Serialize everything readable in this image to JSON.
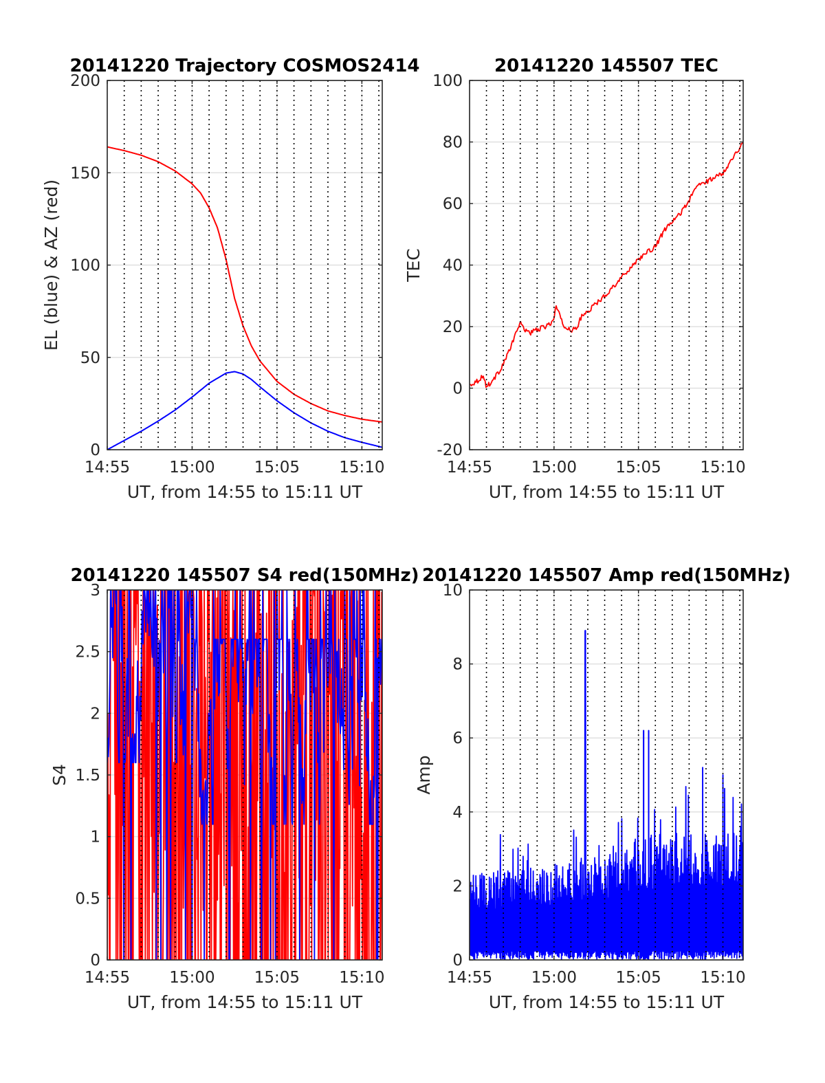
{
  "figure": {
    "background": "#ffffff",
    "colors": {
      "red": "#ff0000",
      "blue": "#0000ff",
      "axis": "#262626",
      "grid": "#e0e0e0",
      "vline": "#000000"
    }
  },
  "chart_data": [
    {
      "id": "trajectory",
      "type": "line",
      "title": "20141220 Trajectory COSMOS2414",
      "xlabel": "UT, from 14:55 to 15:11 UT",
      "ylabel": "EL (blue) & AZ (red)",
      "xlim": [
        0,
        16.2
      ],
      "ylim": [
        0,
        200
      ],
      "x_ticks": [
        0,
        5,
        10,
        15
      ],
      "x_tick_labels": [
        "14:55",
        "15:00",
        "15:05",
        "15:10"
      ],
      "y_ticks": [
        0,
        50,
        100,
        150,
        200
      ],
      "y_tick_labels": [
        "0",
        "50",
        "100",
        "150",
        "200"
      ],
      "grid": true,
      "vertical_dotted_lines_min": [
        1,
        2,
        3,
        4,
        5,
        6,
        7,
        8,
        9,
        10,
        11,
        12,
        13,
        14,
        15,
        16
      ],
      "series": [
        {
          "color": "#ff0000",
          "x": [
            0,
            1,
            2,
            3,
            4,
            5,
            5.5,
            6,
            6.5,
            7,
            7.5,
            8,
            8.5,
            9,
            10,
            11,
            12,
            13,
            14,
            15,
            16.2
          ],
          "y": [
            164,
            162,
            159.5,
            156,
            151,
            144,
            139,
            131,
            120,
            103,
            82,
            67,
            56,
            48,
            37,
            30,
            25,
            21,
            18.5,
            16.5,
            15
          ]
        },
        {
          "color": "#0000ff",
          "x": [
            0,
            1,
            2,
            3,
            4,
            5,
            6,
            7,
            7.5,
            8,
            8.5,
            9,
            10,
            11,
            12,
            13,
            14,
            15,
            16.2
          ],
          "y": [
            0,
            5,
            10,
            15.5,
            21.5,
            28.5,
            36,
            41.5,
            42.3,
            41,
            38,
            34,
            26.5,
            20,
            14.5,
            10,
            6.5,
            4,
            1.3
          ]
        }
      ]
    },
    {
      "id": "tec",
      "type": "line",
      "title": "20141220 145507 TEC",
      "xlabel": "UT, from 14:55 to 15:11 UT",
      "ylabel": "TEC",
      "xlim": [
        0,
        16.2
      ],
      "ylim": [
        -20,
        100
      ],
      "x_ticks": [
        0,
        5,
        10,
        15
      ],
      "x_tick_labels": [
        "14:55",
        "15:00",
        "15:05",
        "15:10"
      ],
      "y_ticks": [
        -20,
        0,
        20,
        40,
        60,
        80,
        100
      ],
      "y_tick_labels": [
        "-20",
        "0",
        "20",
        "40",
        "60",
        "80",
        "100"
      ],
      "grid": true,
      "vertical_dotted_lines_min": [
        1,
        2,
        3,
        4,
        5,
        6,
        7,
        8,
        9,
        10,
        11,
        12,
        13,
        14,
        15,
        16
      ],
      "series": [
        {
          "color": "#ff0000",
          "x": [
            0,
            0.5,
            0.8,
            1.0,
            1.3,
            1.7,
            2.0,
            2.5,
            2.8,
            3.0,
            3.3,
            3.6,
            4.0,
            4.5,
            5.0,
            5.1,
            5.3,
            5.6,
            6.0,
            6.3,
            6.6,
            7.0,
            8.0,
            9.0,
            10.0,
            11.0,
            11.5,
            12.0,
            12.5,
            13.0,
            13.5,
            14.0,
            15.0,
            16.2
          ],
          "y": [
            1,
            2.5,
            4,
            0.5,
            2,
            5,
            8,
            14,
            19,
            21,
            19,
            18,
            19,
            20,
            22,
            27,
            24,
            20,
            19,
            19,
            23,
            25,
            30,
            36,
            42,
            46,
            51,
            54,
            57,
            61,
            66,
            67,
            70,
            80
          ]
        }
      ]
    },
    {
      "id": "s4",
      "type": "line",
      "title": "20141220 145507 S4 red(150MHz)",
      "xlabel": "UT, from 14:55 to 15:11 UT",
      "ylabel": "S4",
      "xlim": [
        0,
        16.2
      ],
      "ylim": [
        0,
        3
      ],
      "x_ticks": [
        0,
        5,
        10,
        15
      ],
      "x_tick_labels": [
        "14:55",
        "15:00",
        "15:05",
        "15:10"
      ],
      "y_ticks": [
        0,
        0.5,
        1,
        1.5,
        2,
        2.5,
        3
      ],
      "y_tick_labels": [
        "0",
        "0.5",
        "1",
        "1.5",
        "2",
        "2.5",
        "3"
      ],
      "grid": true,
      "vertical_dotted_lines_min": [
        1,
        2,
        3,
        4,
        5,
        6,
        7,
        8,
        9,
        10,
        11,
        12,
        13,
        14,
        15,
        16
      ],
      "series": [
        {
          "color": "#ff0000",
          "x_range": [
            0,
            16.2
          ],
          "sample_count": 500,
          "value_range": [
            0,
            3
          ],
          "note": "noisy trace spanning full axis range"
        },
        {
          "color": "#0000ff",
          "x_range": [
            0,
            16.2
          ],
          "sample_count": 500,
          "value_range": [
            0,
            3
          ],
          "typical_range": [
            1.1,
            2.8
          ]
        }
      ]
    },
    {
      "id": "amp",
      "type": "line",
      "title": "20141220 145507 Amp red(150MHz)",
      "xlabel": "UT, from 14:55 to 15:11 UT",
      "ylabel": "Amp",
      "xlim": [
        0,
        16.2
      ],
      "ylim": [
        0,
        10
      ],
      "x_ticks": [
        0,
        5,
        10,
        15
      ],
      "x_tick_labels": [
        "14:55",
        "15:00",
        "15:05",
        "15:10"
      ],
      "y_ticks": [
        0,
        2,
        4,
        6,
        8,
        10
      ],
      "y_tick_labels": [
        "0",
        "2",
        "4",
        "6",
        "8",
        "10"
      ],
      "grid": true,
      "vertical_dotted_lines_min": [
        1,
        2,
        3,
        4,
        5,
        6,
        7,
        8,
        9,
        10,
        11,
        12,
        13,
        14,
        15,
        16
      ],
      "series": [
        {
          "color": "#0000ff",
          "x_range": [
            0,
            16.2
          ],
          "sample_count": 650,
          "envelope_x": [
            0,
            2,
            4,
            6,
            8,
            10,
            12,
            14,
            16.2
          ],
          "envelope_y": [
            2.3,
            2.4,
            2.5,
            2.7,
            3.0,
            3.3,
            3.5,
            3.6,
            3.7
          ],
          "peaks": [
            {
              "x": 6.85,
              "y": 8.9
            },
            {
              "x": 10.3,
              "y": 6.2
            },
            {
              "x": 10.6,
              "y": 6.2
            },
            {
              "x": 13.8,
              "y": 5.2
            },
            {
              "x": 15.0,
              "y": 5.0
            }
          ]
        }
      ]
    }
  ]
}
